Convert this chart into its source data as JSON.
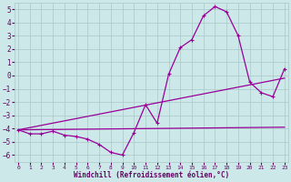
{
  "xlabel": "Windchill (Refroidissement éolien,°C)",
  "x_main": [
    0,
    1,
    2,
    3,
    4,
    5,
    6,
    7,
    8,
    9,
    10,
    11,
    12,
    13,
    14,
    15,
    16,
    17,
    18,
    19,
    20,
    21,
    22,
    23
  ],
  "y_main": [
    -4.1,
    -4.4,
    -4.4,
    -4.2,
    -4.5,
    -4.6,
    -4.8,
    -5.2,
    -5.8,
    -6.0,
    -4.3,
    -2.2,
    -3.6,
    0.1,
    2.1,
    2.7,
    4.5,
    5.2,
    4.8,
    3.0,
    -0.5,
    -1.3,
    -1.6,
    0.5
  ],
  "trend1_x": [
    0,
    23
  ],
  "trend1_y": [
    -4.1,
    -0.2
  ],
  "trend2_x": [
    0,
    23
  ],
  "trend2_y": [
    -4.1,
    -3.9
  ],
  "trend3_x": [
    0,
    10,
    23
  ],
  "trend3_y": [
    -4.1,
    -3.5,
    -3.9
  ],
  "xlim": [
    0,
    23
  ],
  "ylim": [
    -6.5,
    5.5
  ],
  "yticks": [
    -6,
    -5,
    -4,
    -3,
    -2,
    -1,
    0,
    1,
    2,
    3,
    4,
    5
  ],
  "xticks": [
    0,
    1,
    2,
    3,
    4,
    5,
    6,
    7,
    8,
    9,
    10,
    11,
    12,
    13,
    14,
    15,
    16,
    17,
    18,
    19,
    20,
    21,
    22,
    23
  ],
  "line_color": "#990099",
  "bg_color": "#cce8e8",
  "grid_color": "#aac8c8",
  "tick_color": "#660066",
  "xlabel_color": "#660066"
}
